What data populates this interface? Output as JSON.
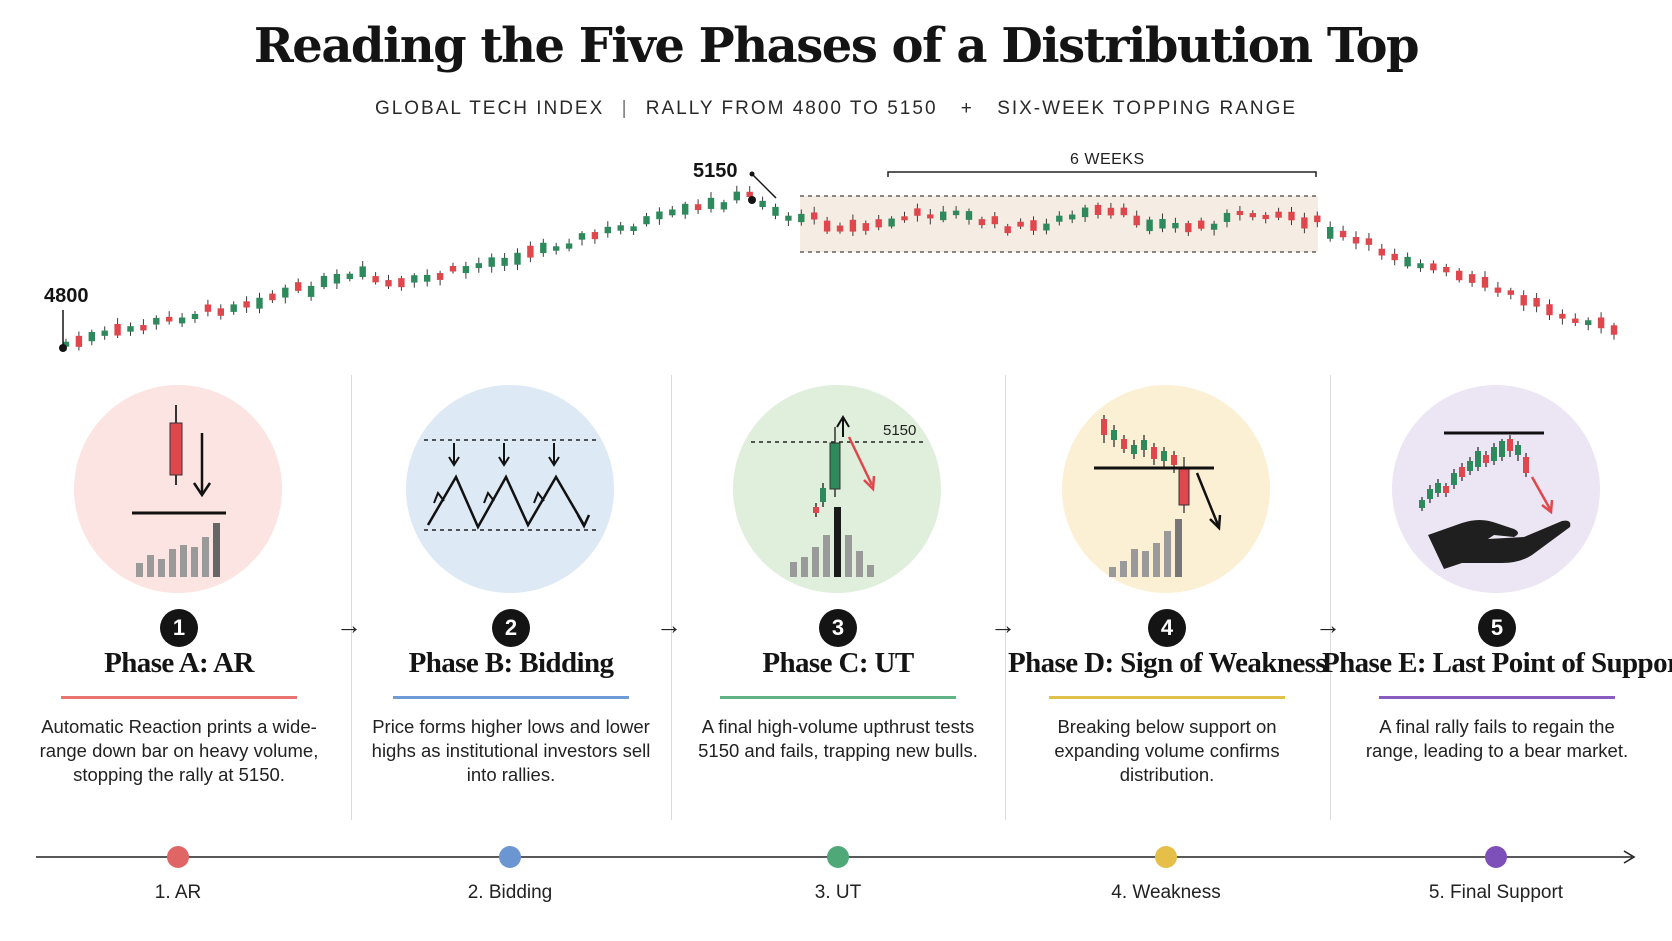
{
  "header": {
    "title": "Reading the Five Phases of a Distribution Top",
    "subtitle_parts": [
      "GLOBAL TECH INDEX",
      "RALLY FROM 4800 TO 5150",
      "SIX-WEEK TOPPING RANGE"
    ],
    "subtitle_sep": "|",
    "subtitle_plus": "+"
  },
  "chart": {
    "start_label": "4800",
    "peak_label": "5150",
    "range_label": "6 WEEKS",
    "colors": {
      "up": "#2e8a5c",
      "down": "#e0474c",
      "range_fill": "#f5ede3"
    }
  },
  "phases": [
    {
      "number": "1",
      "title": "Phase A: AR",
      "description": "Automatic Reaction prints a wide-range down bar on heavy volume, stopping the rally at 5150.",
      "color": "#e8736f",
      "circle": "#fbe4e1"
    },
    {
      "number": "2",
      "title": "Phase B: Bidding",
      "description": "Price forms higher lows and lower highs as institutional investors sell into rallies.",
      "color": "#6f9bd6",
      "circle": "#dde9f4"
    },
    {
      "number": "3",
      "title": "Phase C: UT",
      "description": "A final high-volume upthrust tests 5150 and fails, trapping new bulls.",
      "color": "#5fb384",
      "circle": "#e0efdc",
      "icon_label": "5150"
    },
    {
      "number": "4",
      "title": "Phase D: Sign of Weakness",
      "description": "Breaking below support on expanding volume confirms distribution.",
      "color": "#e0c24a",
      "circle": "#fbf0d3"
    },
    {
      "number": "5",
      "title": "Phase E: Last Point of Support",
      "description": "A final rally fails to regain the range, leading to a bear market.",
      "color": "#8a5cc2",
      "circle": "#ece5f4"
    }
  ],
  "timeline": {
    "items": [
      {
        "label": "1. AR",
        "color": "#e06666"
      },
      {
        "label": "2. Bidding",
        "color": "#6b96d1"
      },
      {
        "label": "3. UT",
        "color": "#4fa877"
      },
      {
        "label": "4. Weakness",
        "color": "#e6bf48"
      },
      {
        "label": "5. Final Support",
        "color": "#7d4fb8"
      }
    ]
  }
}
